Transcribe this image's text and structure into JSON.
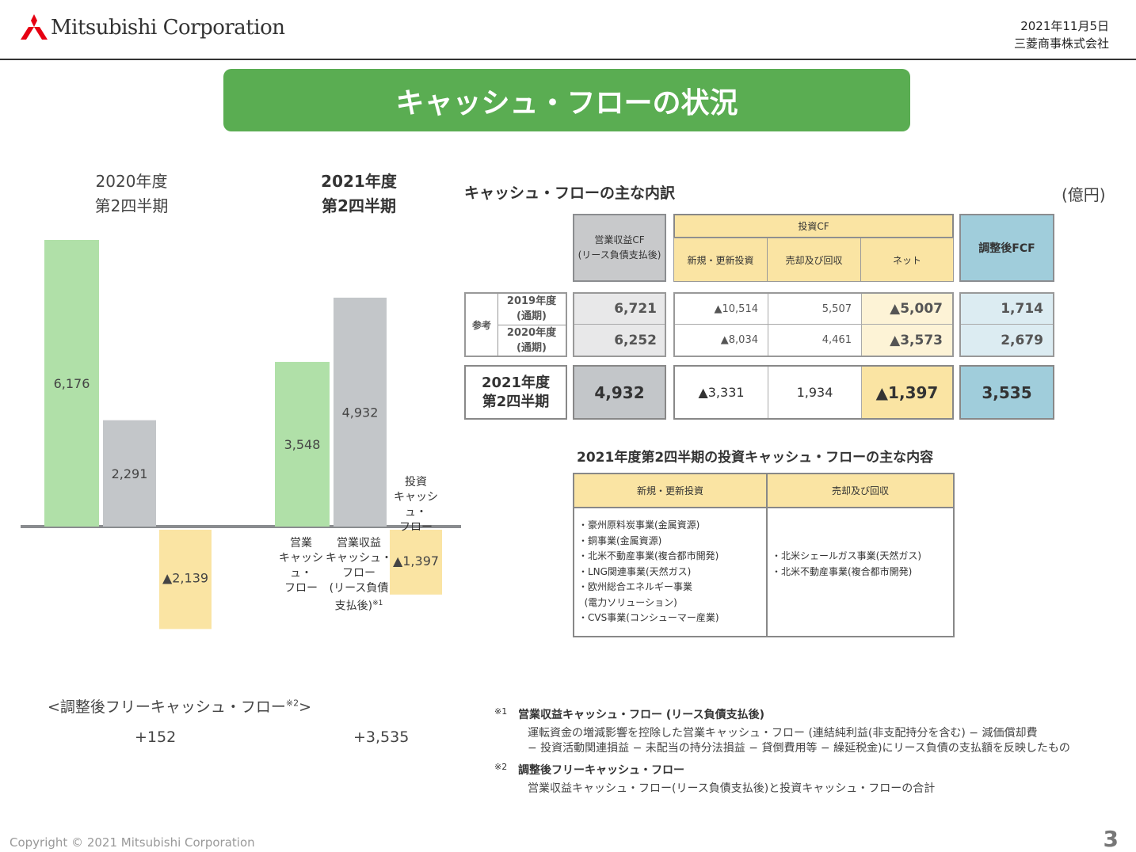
{
  "header": {
    "logo_text": "Mitsubishi Corporation",
    "date": "2021年11月5日",
    "company": "三菱商事株式会社"
  },
  "title": "キャッシュ・フローの状況",
  "chart": {
    "period_2020_line1": "2020年度",
    "period_2020_line2": "第2四半期",
    "period_2021_line1": "2021年度",
    "period_2021_line2": "第2四半期",
    "cat_operating": [
      "営業",
      "キャッシュ・",
      "フロー"
    ],
    "cat_op_income": [
      "営業収益",
      "キャッシュ・",
      "フロー",
      "(リース負債",
      "支払後)"
    ],
    "cat_op_income_note": "※1",
    "cat_investing": [
      "投資",
      "キャッシュ・",
      "フロー"
    ],
    "fcf_title": "<調整後フリーキャッシュ・フロー",
    "fcf_note": "※2",
    "fcf_close": ">",
    "fcf_2020": "+152",
    "fcf_2021": "+3,535"
  },
  "chart_data": {
    "type": "bar",
    "categories": [
      "2020年度 第2四半期",
      "2021年度 第2四半期"
    ],
    "series": [
      {
        "name": "営業キャッシュ・フロー",
        "values": [
          6176,
          3548
        ],
        "labels": [
          "6,176",
          "3,548"
        ],
        "color": "#b0e0a8"
      },
      {
        "name": "営業収益キャッシュ・フロー(リース負債支払後)",
        "values": [
          2291,
          4932
        ],
        "labels": [
          "2,291",
          "4,932"
        ],
        "color": "#c3c6c9"
      },
      {
        "name": "投資キャッシュ・フロー",
        "values": [
          -2139,
          -1397
        ],
        "labels": [
          "▲2,139",
          "▲1,397"
        ],
        "color": "#fae4a3"
      }
    ],
    "ylim": [
      -2200,
      6300
    ]
  },
  "breakdown": {
    "title": "キャッシュ・フローの主な内訳",
    "unit": "(億円)",
    "col_opcf": [
      "営業収益CF",
      "(リース負債支払後)"
    ],
    "col_invcf": "投資CF",
    "col_new": "新規・更新投資",
    "col_sale": "売却及び回収",
    "col_net": "ネット",
    "col_fcf": "調整後FCF",
    "ref_label": "参考",
    "rows": [
      {
        "label1": "2019年度",
        "label2": "(通期)",
        "opcf": "6,721",
        "new": "▲10,514",
        "sale": "5,507",
        "net": "▲5,007",
        "fcf": "1,714"
      },
      {
        "label1": "2020年度",
        "label2": "(通期)",
        "opcf": "6,252",
        "new": "▲8,034",
        "sale": "4,461",
        "net": "▲3,573",
        "fcf": "2,679"
      }
    ],
    "current": {
      "label1": "2021年度",
      "label2": "第2四半期",
      "opcf": "4,932",
      "new": "▲3,331",
      "sale": "1,934",
      "net": "▲1,397",
      "fcf": "3,535"
    }
  },
  "investments": {
    "title": "2021年度第2四半期の投資キャッシュ・フローの主な内容",
    "col_new": "新規・更新投資",
    "col_sale": "売却及び回収",
    "new_items": [
      "・豪州原料炭事業(金属資源)",
      "・銅事業(金属資源)",
      "・北米不動産事業(複合都市開発)",
      "・LNG関連事業(天然ガス)",
      "・欧州総合エネルギー事業",
      "  (電力ソリューション)",
      "・CVS事業(コンシューマー産業)"
    ],
    "sale_items": [
      "・北米シェールガス事業(天然ガス)",
      "・北米不動産事業(複合都市開発)"
    ]
  },
  "notes": {
    "n1_mark": "※1",
    "n1_head": "営業収益キャッシュ・フロー (リース負債支払後)",
    "n1_line1": "運転資金の増減影響を控除した営業キャッシュ・フロー (連結純利益(非支配持分を含む) − 減価償却費",
    "n1_line2": "− 投資活動関連損益 − 未配当の持分法損益 − 貸倒費用等 − 繰延税金)にリース負債の支払額を反映したもの",
    "n2_mark": "※2",
    "n2_head": "調整後フリーキャッシュ・フロー",
    "n2_line1": "営業収益キャッシュ・フロー(リース負債支払後)と投資キャッシュ・フローの合計"
  },
  "footer": {
    "copyright": "Copyright © 2021 Mitsubishi Corporation",
    "page": "3"
  }
}
